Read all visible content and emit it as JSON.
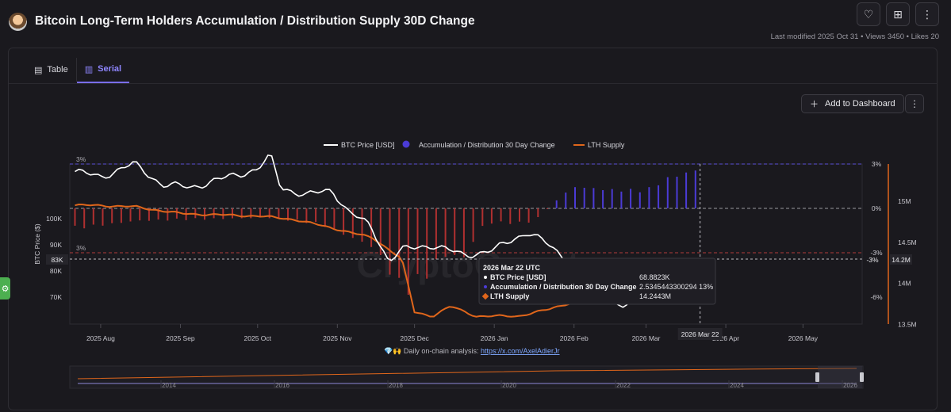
{
  "header": {
    "title": "Bitcoin Long-Term Holders Accumulation / Distribution Supply 30D Change",
    "meta": "Last modified 2025 Oct 31 • Views 3450 • Likes 20",
    "icons": [
      "heart-icon",
      "bookmark-plus-icon",
      "more-vertical-icon"
    ]
  },
  "tabs": [
    {
      "label": "Table",
      "icon": "table-icon",
      "active": false
    },
    {
      "label": "Serial",
      "icon": "bar-chart-icon",
      "active": true
    }
  ],
  "toolbar": {
    "add_label": "Add to Dashboard"
  },
  "watermark": "CryptoQuant",
  "footnote": {
    "prefix": "💎🙌 Daily on-chain analysis: ",
    "link": "https://x.com/AxelAdierJr"
  },
  "colors": {
    "price": "#ffffff",
    "accumulation": "#4b3bd6",
    "distribution": "#b03030",
    "lth": "#e0661b",
    "accent": "#7a6dff"
  },
  "chart_data": {
    "type": "line",
    "legend_position": "top-center",
    "legend": [
      "BTC Price [USD]",
      "Accumulation / Distribution 30 Day Change",
      "LTH Supply"
    ],
    "x_ticks": [
      "2025 Aug",
      "2025 Sep",
      "2025 Oct",
      "2025 Nov",
      "2025 Dec",
      "2026 Jan",
      "2026 Feb",
      "2026 Mar",
      "2026 Apr",
      "2026 May"
    ],
    "y_left": {
      "label": "BTC Price ($)",
      "ticks": [
        "100K",
        "90K",
        "80K",
        "70K"
      ]
    },
    "y_right1": {
      "ticks": [
        "3%",
        "0%",
        "-3%",
        "-6%"
      ]
    },
    "y_right2": {
      "ticks": [
        "15M",
        "14.5M",
        "14M",
        "13.5M"
      ]
    },
    "ref_labels": {
      "top": "3%",
      "mid": "3%"
    },
    "crosshair": {
      "x_label": "2026 Mar 22",
      "price_label": "83K",
      "pct_label": "-3%",
      "supply_label": "14.2M"
    },
    "series": [
      {
        "name": "BTC Price [USD]",
        "type": "line",
        "dates": [
          "2025-07-22",
          "2025-08-01",
          "2025-08-14",
          "2025-08-25",
          "2025-09-05",
          "2025-09-20",
          "2025-10-01",
          "2025-10-06",
          "2025-10-10",
          "2025-10-20",
          "2025-10-30",
          "2025-11-05",
          "2025-11-14",
          "2025-11-21",
          "2025-11-26",
          "2025-12-08",
          "2025-12-20",
          "2026-01-01",
          "2026-01-08",
          "2026-01-14",
          "2026-01-22",
          "2026-02-01",
          "2026-02-05",
          "2026-02-12",
          "2026-02-20",
          "2026-03-01",
          "2026-03-08",
          "2026-03-15",
          "2026-03-22"
        ],
        "values": [
          118,
          116,
          121,
          113,
          112,
          116,
          119,
          124,
          112,
          109,
          111,
          103,
          97,
          84,
          88,
          90,
          86,
          88,
          92,
          95,
          90,
          82,
          70,
          69,
          67,
          68,
          71,
          73,
          68.9
        ]
      },
      {
        "name": "Accumulation / Distribution 30 Day Change",
        "type": "bar",
        "unit": "%",
        "dates": [
          "2025-07-22",
          "2025-08-15",
          "2025-09-10",
          "2025-10-05",
          "2025-10-25",
          "2025-11-15",
          "2025-11-27",
          "2025-12-05",
          "2025-12-12",
          "2025-12-20",
          "2025-12-28",
          "2026-01-03",
          "2026-01-10",
          "2026-01-17",
          "2026-01-24",
          "2026-02-01",
          "2026-02-15",
          "2026-03-01",
          "2026-03-10",
          "2026-03-22"
        ],
        "values": [
          -1.3,
          -0.8,
          -0.7,
          -0.6,
          -1.0,
          -2.5,
          -5.5,
          -4.5,
          -3.0,
          -3.2,
          -1.0,
          -0.9,
          -1.0,
          -0.8,
          0.4,
          1.4,
          1.2,
          1.2,
          2.0,
          2.53
        ]
      },
      {
        "name": "LTH Supply",
        "type": "line",
        "unit": "M",
        "dates": [
          "2025-07-22",
          "2025-08-01",
          "2025-08-15",
          "2025-09-01",
          "2025-09-20",
          "2025-10-01",
          "2025-10-15",
          "2025-11-01",
          "2025-11-15",
          "2025-11-26",
          "2025-12-01",
          "2025-12-08",
          "2025-12-15",
          "2025-12-25",
          "2026-01-10",
          "2026-01-22",
          "2026-02-01",
          "2026-02-15",
          "2026-03-01",
          "2026-03-15",
          "2026-03-22"
        ],
        "values": [
          14.95,
          14.95,
          14.93,
          14.85,
          14.83,
          14.82,
          14.78,
          14.66,
          14.55,
          14.3,
          13.65,
          13.6,
          13.72,
          13.6,
          13.6,
          13.68,
          13.78,
          13.88,
          13.98,
          14.08,
          14.2443
        ]
      }
    ],
    "tooltip": {
      "date": "2026 Mar 22 UTC",
      "rows": [
        {
          "label": "BTC Price [USD]",
          "value": "68.8823K",
          "marker": "dot-white"
        },
        {
          "label": "Accumulation / Distribution 30 Day Change",
          "value": "2.5345443300294 13%",
          "marker": "dot-blue"
        },
        {
          "label": "LTH Supply",
          "value": "14.2443M",
          "marker": "diamond-orange"
        }
      ]
    },
    "navigator": {
      "ticks": [
        "2014",
        "2016",
        "2018",
        "2020",
        "2022",
        "2024",
        "2026"
      ]
    }
  }
}
